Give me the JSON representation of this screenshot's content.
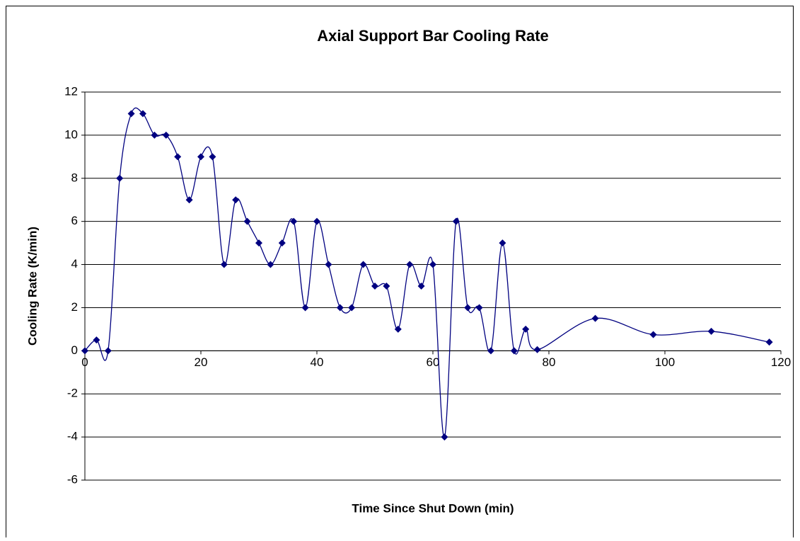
{
  "chart_data": {
    "type": "scatter",
    "title": "Axial Support Bar Cooling Rate",
    "x_label": "Time Since Shut Down (min)",
    "y_label": "Cooling Rate (K/min)",
    "series": [
      {
        "color": "#000080",
        "x": [
          0,
          2,
          4,
          6,
          8,
          10,
          12,
          14,
          16,
          18,
          20,
          22,
          24,
          26,
          28,
          30,
          32,
          34,
          36,
          38,
          40,
          42,
          44,
          46,
          48,
          50,
          52,
          54,
          56,
          58,
          60,
          62,
          64,
          66,
          68,
          70,
          72,
          74,
          76,
          78,
          88,
          98,
          108,
          118
        ],
        "values": [
          0,
          0.5,
          0,
          8,
          11,
          11,
          10,
          10,
          9,
          7,
          9,
          9,
          4,
          7,
          6,
          5,
          4,
          5,
          6,
          2,
          6,
          4,
          2,
          2,
          4,
          3,
          3,
          1,
          4,
          3,
          4,
          -4,
          6,
          2,
          2,
          0,
          5,
          0,
          1,
          0.05,
          1.5,
          0.75,
          0.9,
          0.4
        ]
      }
    ],
    "xlim": [
      0,
      120
    ],
    "xticks": [
      0,
      20,
      40,
      60,
      80,
      100,
      120
    ],
    "ylim": [
      -6,
      12
    ],
    "yticks": [
      -6,
      -4,
      -2,
      0,
      2,
      4,
      6,
      8,
      10,
      12
    ],
    "grid": true,
    "smooth": true
  }
}
